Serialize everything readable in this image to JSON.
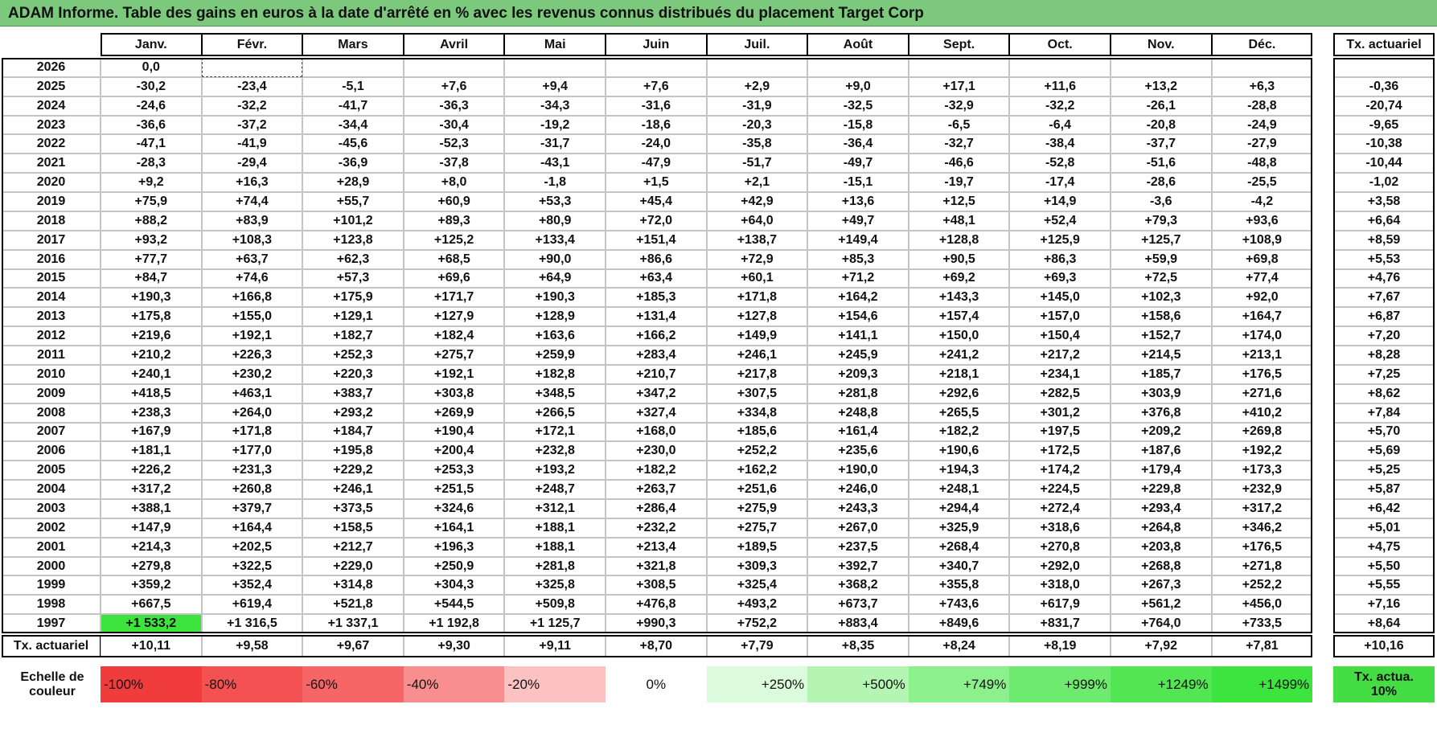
{
  "title": "ADAM Informe. Table des gains en euros à la date d'arrêté en % avec les revenus connus distribués du placement Target Corp",
  "table": {
    "columns": [
      "Janv.",
      "Févr.",
      "Mars",
      "Avril",
      "Mai",
      "Juin",
      "Juil.",
      "Août",
      "Sept.",
      "Oct.",
      "Nov.",
      "Déc."
    ],
    "rate_header": "Tx. actuariel",
    "rows": [
      {
        "year": "2026",
        "cells": [
          "0,0"
        ]
      },
      {
        "year": "2025",
        "cells": [
          "-30,2",
          "-23,4",
          "-5,1",
          "+7,6",
          "+9,4",
          "+7,6",
          "+2,9",
          "+9,0",
          "+17,1",
          "+11,6",
          "+13,2",
          "+6,3"
        ],
        "rate": "-0,36"
      },
      {
        "year": "2024",
        "cells": [
          "-24,6",
          "-32,2",
          "-41,7",
          "-36,3",
          "-34,3",
          "-31,6",
          "-31,9",
          "-32,5",
          "-32,9",
          "-32,2",
          "-26,1",
          "-28,8"
        ],
        "rate": "-20,74"
      },
      {
        "year": "2023",
        "cells": [
          "-36,6",
          "-37,2",
          "-34,4",
          "-30,4",
          "-19,2",
          "-18,6",
          "-20,3",
          "-15,8",
          "-6,5",
          "-6,4",
          "-20,8",
          "-24,9"
        ],
        "rate": "-9,65"
      },
      {
        "year": "2022",
        "cells": [
          "-47,1",
          "-41,9",
          "-45,6",
          "-52,3",
          "-31,7",
          "-24,0",
          "-35,8",
          "-36,4",
          "-32,7",
          "-38,4",
          "-37,7",
          "-27,9"
        ],
        "rate": "-10,38"
      },
      {
        "year": "2021",
        "cells": [
          "-28,3",
          "-29,4",
          "-36,9",
          "-37,8",
          "-43,1",
          "-47,9",
          "-51,7",
          "-49,7",
          "-46,6",
          "-52,8",
          "-51,6",
          "-48,8"
        ],
        "rate": "-10,44"
      },
      {
        "year": "2020",
        "cells": [
          "+9,2",
          "+16,3",
          "+28,9",
          "+8,0",
          "-1,8",
          "+1,5",
          "+2,1",
          "-15,1",
          "-19,7",
          "-17,4",
          "-28,6",
          "-25,5"
        ],
        "rate": "-1,02"
      },
      {
        "year": "2019",
        "cells": [
          "+75,9",
          "+74,4",
          "+55,7",
          "+60,9",
          "+53,3",
          "+45,4",
          "+42,9",
          "+13,6",
          "+12,5",
          "+14,9",
          "-3,6",
          "-4,2"
        ],
        "rate": "+3,58"
      },
      {
        "year": "2018",
        "cells": [
          "+88,2",
          "+83,9",
          "+101,2",
          "+89,3",
          "+80,9",
          "+72,0",
          "+64,0",
          "+49,7",
          "+48,1",
          "+52,4",
          "+79,3",
          "+93,6"
        ],
        "rate": "+6,64"
      },
      {
        "year": "2017",
        "cells": [
          "+93,2",
          "+108,3",
          "+123,8",
          "+125,2",
          "+133,4",
          "+151,4",
          "+138,7",
          "+149,4",
          "+128,8",
          "+125,9",
          "+125,7",
          "+108,9"
        ],
        "rate": "+8,59"
      },
      {
        "year": "2016",
        "cells": [
          "+77,7",
          "+63,7",
          "+62,3",
          "+68,5",
          "+90,0",
          "+86,6",
          "+72,9",
          "+85,3",
          "+90,5",
          "+86,3",
          "+59,9",
          "+69,8"
        ],
        "rate": "+5,53"
      },
      {
        "year": "2015",
        "cells": [
          "+84,7",
          "+74,6",
          "+57,3",
          "+69,6",
          "+64,9",
          "+63,4",
          "+60,1",
          "+71,2",
          "+69,2",
          "+69,3",
          "+72,5",
          "+77,4"
        ],
        "rate": "+4,76"
      },
      {
        "year": "2014",
        "cells": [
          "+190,3",
          "+166,8",
          "+175,9",
          "+171,7",
          "+190,3",
          "+185,3",
          "+171,8",
          "+164,2",
          "+143,3",
          "+145,0",
          "+102,3",
          "+92,0"
        ],
        "rate": "+7,67"
      },
      {
        "year": "2013",
        "cells": [
          "+175,8",
          "+155,0",
          "+129,1",
          "+127,9",
          "+128,9",
          "+131,4",
          "+127,8",
          "+154,6",
          "+157,4",
          "+157,0",
          "+158,6",
          "+164,7"
        ],
        "rate": "+6,87"
      },
      {
        "year": "2012",
        "cells": [
          "+219,6",
          "+192,1",
          "+182,7",
          "+182,4",
          "+163,6",
          "+166,2",
          "+149,9",
          "+141,1",
          "+150,0",
          "+150,4",
          "+152,7",
          "+174,0"
        ],
        "rate": "+7,20"
      },
      {
        "year": "2011",
        "cells": [
          "+210,2",
          "+226,3",
          "+252,3",
          "+275,7",
          "+259,9",
          "+283,4",
          "+246,1",
          "+245,9",
          "+241,2",
          "+217,2",
          "+214,5",
          "+213,1"
        ],
        "rate": "+8,28"
      },
      {
        "year": "2010",
        "cells": [
          "+240,1",
          "+230,2",
          "+220,3",
          "+192,1",
          "+182,8",
          "+210,7",
          "+217,8",
          "+209,3",
          "+218,1",
          "+234,1",
          "+185,7",
          "+176,5"
        ],
        "rate": "+7,25"
      },
      {
        "year": "2009",
        "cells": [
          "+418,5",
          "+463,1",
          "+383,7",
          "+303,8",
          "+348,5",
          "+347,2",
          "+307,5",
          "+281,8",
          "+292,6",
          "+282,5",
          "+303,9",
          "+271,6"
        ],
        "rate": "+8,62"
      },
      {
        "year": "2008",
        "cells": [
          "+238,3",
          "+264,0",
          "+293,2",
          "+269,9",
          "+266,5",
          "+327,4",
          "+334,8",
          "+248,8",
          "+265,5",
          "+301,2",
          "+376,8",
          "+410,2"
        ],
        "rate": "+7,84"
      },
      {
        "year": "2007",
        "cells": [
          "+167,9",
          "+171,8",
          "+184,7",
          "+190,4",
          "+172,1",
          "+168,0",
          "+185,6",
          "+161,4",
          "+182,2",
          "+197,5",
          "+209,2",
          "+269,8"
        ],
        "rate": "+5,70"
      },
      {
        "year": "2006",
        "cells": [
          "+181,1",
          "+177,0",
          "+195,8",
          "+200,4",
          "+232,8",
          "+230,0",
          "+252,2",
          "+235,6",
          "+190,6",
          "+172,5",
          "+187,6",
          "+192,2"
        ],
        "rate": "+5,69"
      },
      {
        "year": "2005",
        "cells": [
          "+226,2",
          "+231,3",
          "+229,2",
          "+253,3",
          "+193,2",
          "+182,2",
          "+162,2",
          "+190,0",
          "+194,3",
          "+174,2",
          "+179,4",
          "+173,3"
        ],
        "rate": "+5,25"
      },
      {
        "year": "2004",
        "cells": [
          "+317,2",
          "+260,8",
          "+246,1",
          "+251,5",
          "+248,7",
          "+263,7",
          "+251,6",
          "+246,0",
          "+248,1",
          "+224,5",
          "+229,8",
          "+232,9"
        ],
        "rate": "+5,87"
      },
      {
        "year": "2003",
        "cells": [
          "+388,1",
          "+379,7",
          "+373,5",
          "+324,6",
          "+312,1",
          "+286,4",
          "+275,9",
          "+243,3",
          "+294,4",
          "+272,4",
          "+293,4",
          "+317,2"
        ],
        "rate": "+6,42"
      },
      {
        "year": "2002",
        "cells": [
          "+147,9",
          "+164,4",
          "+158,5",
          "+164,1",
          "+188,1",
          "+232,2",
          "+275,7",
          "+267,0",
          "+325,9",
          "+318,6",
          "+264,8",
          "+346,2"
        ],
        "rate": "+5,01"
      },
      {
        "year": "2001",
        "cells": [
          "+214,3",
          "+202,5",
          "+212,7",
          "+196,3",
          "+188,1",
          "+213,4",
          "+189,5",
          "+237,5",
          "+268,4",
          "+270,8",
          "+203,8",
          "+176,5"
        ],
        "rate": "+4,75"
      },
      {
        "year": "2000",
        "cells": [
          "+279,8",
          "+322,5",
          "+229,0",
          "+250,9",
          "+281,8",
          "+321,8",
          "+309,3",
          "+392,7",
          "+340,7",
          "+292,0",
          "+268,8",
          "+271,8"
        ],
        "rate": "+5,50"
      },
      {
        "year": "1999",
        "cells": [
          "+359,2",
          "+352,4",
          "+314,8",
          "+304,3",
          "+325,8",
          "+308,5",
          "+325,4",
          "+368,2",
          "+355,8",
          "+318,0",
          "+267,3",
          "+252,2"
        ],
        "rate": "+5,55"
      },
      {
        "year": "1998",
        "cells": [
          "+667,5",
          "+619,4",
          "+521,8",
          "+544,5",
          "+509,8",
          "+476,8",
          "+493,2",
          "+673,7",
          "+743,6",
          "+617,9",
          "+561,2",
          "+456,0"
        ],
        "rate": "+7,16"
      },
      {
        "year": "1997",
        "cells": [
          "+1 533,2",
          "+1 316,5",
          "+1 337,1",
          "+1 192,8",
          "+1 125,7",
          "+990,3",
          "+752,2",
          "+883,4",
          "+849,6",
          "+831,7",
          "+764,0",
          "+733,5"
        ],
        "rate": "+8,64"
      }
    ],
    "footer": {
      "label": "Tx. actuariel",
      "cells": [
        "+10,11",
        "+9,58",
        "+9,67",
        "+9,30",
        "+9,11",
        "+8,70",
        "+7,79",
        "+8,35",
        "+8,24",
        "+8,19",
        "+7,92",
        "+7,81"
      ],
      "rate": "+10,16"
    }
  },
  "legend": {
    "label": "Echelle de couleur",
    "items": [
      {
        "label": "-100%",
        "color": "#f03c3c"
      },
      {
        "label": "-80%",
        "color": "#f45252"
      },
      {
        "label": "-60%",
        "color": "#f66666"
      },
      {
        "label": "-40%",
        "color": "#f88e8e"
      },
      {
        "label": "-20%",
        "color": "#fcc2c2"
      },
      {
        "label": "0%",
        "color": "#ffffff"
      },
      {
        "label": "+250%",
        "color": "#dcfadc"
      },
      {
        "label": "+500%",
        "color": "#b4f5b4"
      },
      {
        "label": "+749%",
        "color": "#8cf08c"
      },
      {
        "label": "+999%",
        "color": "#6eeb6e"
      },
      {
        "label": "+1249%",
        "color": "#52e652"
      },
      {
        "label": "+1499%",
        "color": "#3ee43e"
      }
    ],
    "rate": {
      "label": "Tx. actua. 10%",
      "color": "#44dd44"
    }
  }
}
